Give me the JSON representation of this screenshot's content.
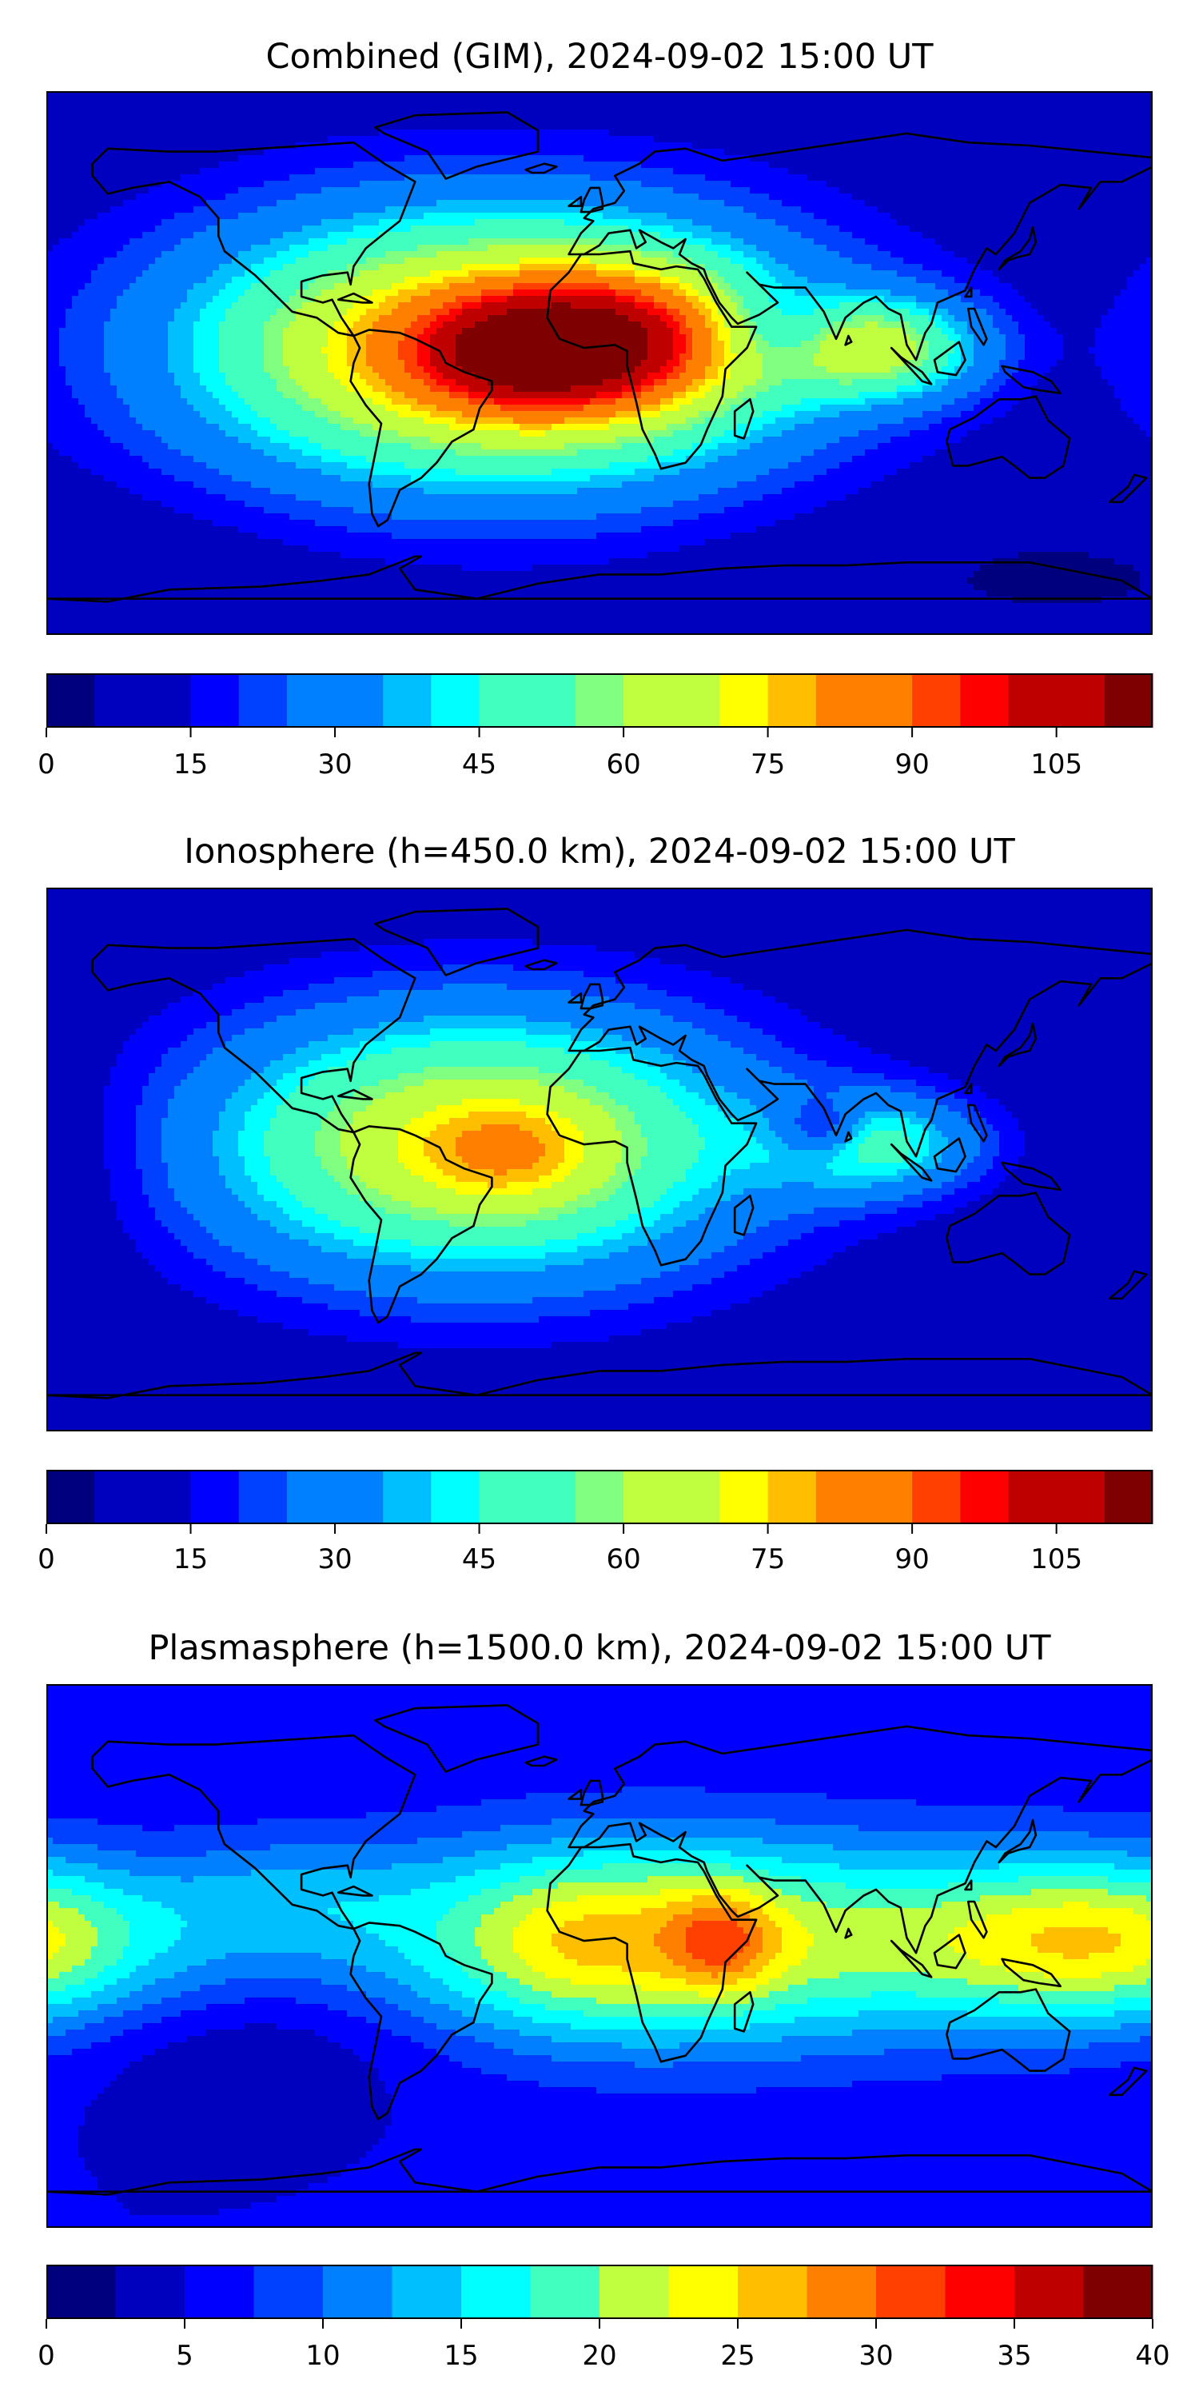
{
  "colors": {
    "jet": [
      "#00007f",
      "#0000bf",
      "#0000ff",
      "#0040ff",
      "#0080ff",
      "#00bfff",
      "#00ffff",
      "#40ffbf",
      "#80ff80",
      "#bfff40",
      "#ffff00",
      "#ffbf00",
      "#ff8000",
      "#ff4000",
      "#ff0000",
      "#bf0000",
      "#7f0000"
    ],
    "land_outline": "#000000"
  },
  "panels": [
    {
      "id": "combined",
      "title": "Combined (GIM), 2024-09-02 15:00 UT",
      "colorbar": {
        "min": 0,
        "max": 115,
        "step": 5,
        "ticks": [
          "0",
          "15",
          "30",
          "45",
          "60",
          "75",
          "90",
          "105"
        ],
        "tick_values": [
          0,
          15,
          30,
          45,
          60,
          75,
          90,
          105
        ]
      },
      "field": {
        "base": 9,
        "blobs": [
          {
            "lon": -35,
            "lat": 5,
            "amp": 82,
            "slon": 70,
            "slat": 32
          },
          {
            "lon": 10,
            "lat": 8,
            "amp": 35,
            "slon": 30,
            "slat": 18
          },
          {
            "lon": -25,
            "lat": 3,
            "amp": 25,
            "slon": 22,
            "slat": 12
          },
          {
            "lon": 90,
            "lat": 5,
            "amp": 45,
            "slon": 25,
            "slat": 12
          },
          {
            "lon": 60,
            "lat": 10,
            "amp": -20,
            "slon": 15,
            "slat": 10
          },
          {
            "lon": 150,
            "lat": -70,
            "amp": -5,
            "slon": 60,
            "slat": 15
          }
        ]
      }
    },
    {
      "id": "ionosphere",
      "title": "Ionosphere  (h=450.0 km), 2024-09-02 15:00 UT",
      "colorbar": {
        "min": 0,
        "max": 115,
        "step": 5,
        "ticks": [
          "0",
          "15",
          "30",
          "45",
          "60",
          "75",
          "90",
          "105"
        ],
        "tick_values": [
          0,
          15,
          30,
          45,
          60,
          75,
          90,
          105
        ]
      },
      "field": {
        "base": 8,
        "blobs": [
          {
            "lon": -40,
            "lat": 5,
            "amp": 65,
            "slon": 65,
            "slat": 32
          },
          {
            "lon": -28,
            "lat": 2,
            "amp": 12,
            "slon": 20,
            "slat": 12
          },
          {
            "lon": 90,
            "lat": 5,
            "amp": 35,
            "slon": 25,
            "slat": 12
          },
          {
            "lon": 72,
            "lat": 10,
            "amp": -25,
            "slon": 10,
            "slat": 7
          },
          {
            "lon": -170,
            "lat": 0,
            "amp": -5,
            "slon": 20,
            "slat": 25
          }
        ]
      }
    },
    {
      "id": "plasmasphere",
      "title": "Plasmasphere (h=1500.0 km), 2024-09-02 15:00 UT",
      "colorbar": {
        "min": 0,
        "max": 40,
        "step": 2.5,
        "ticks": [
          "0",
          "5",
          "10",
          "15",
          "20",
          "25",
          "30",
          "35",
          "40"
        ],
        "tick_values": [
          0,
          5,
          10,
          15,
          20,
          25,
          30,
          35,
          40
        ]
      },
      "field": {
        "base": 5,
        "blobs": [
          {
            "lon": 30,
            "lat": 5,
            "amp": 18,
            "slon": 75,
            "slat": 25
          },
          {
            "lon": 40,
            "lat": 5,
            "amp": 8,
            "slon": 12,
            "slat": 12
          },
          {
            "lon": -10,
            "lat": 5,
            "amp": 5,
            "slon": 30,
            "slat": 20
          },
          {
            "lon": 150,
            "lat": 5,
            "amp": 8,
            "slon": 40,
            "slat": 20
          },
          {
            "lon": -180,
            "lat": 5,
            "amp": 10,
            "slon": 40,
            "slat": 20
          },
          {
            "lon": -100,
            "lat": 20,
            "amp": 5,
            "slon": 30,
            "slat": 15
          },
          {
            "lon": -110,
            "lat": -30,
            "amp": -3,
            "slon": 40,
            "slat": 15
          }
        ]
      }
    }
  ]
}
